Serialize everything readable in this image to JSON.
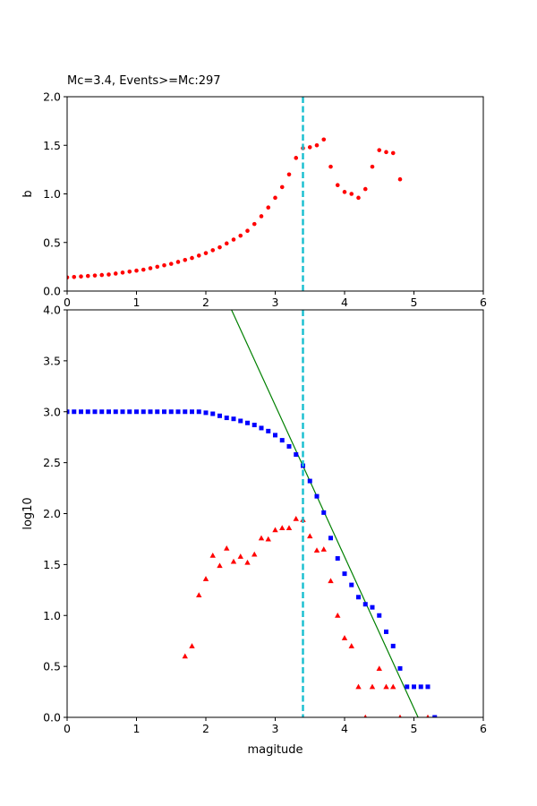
{
  "chart_data": [
    {
      "type": "scatter",
      "title": "Mc=3.4, Events>=Mc:297",
      "xlabel": "",
      "ylabel": "b",
      "xlim": [
        0,
        6
      ],
      "ylim": [
        0,
        2.0
      ],
      "xticks": [
        "0",
        "1",
        "2",
        "3",
        "4",
        "5",
        "6"
      ],
      "yticks": [
        "0.0",
        "0.5",
        "1.0",
        "1.5",
        "2.0"
      ],
      "grid": false,
      "mc_line": {
        "x": 3.4,
        "color": "#17becf",
        "style": "dashed"
      },
      "series": [
        {
          "color": "#ff0000",
          "marker": "circle",
          "x": [
            0.0,
            0.1,
            0.2,
            0.3,
            0.4,
            0.5,
            0.6,
            0.7,
            0.8,
            0.9,
            1.0,
            1.1,
            1.2,
            1.3,
            1.4,
            1.5,
            1.6,
            1.7,
            1.8,
            1.9,
            2.0,
            2.1,
            2.2,
            2.3,
            2.4,
            2.5,
            2.6,
            2.7,
            2.8,
            2.9,
            3.0,
            3.1,
            3.2,
            3.3,
            3.4,
            3.5,
            3.6,
            3.7,
            3.8,
            3.9,
            4.0,
            4.1,
            4.2,
            4.3,
            4.4,
            4.5,
            4.6,
            4.7,
            4.8
          ],
          "y": [
            0.14,
            0.145,
            0.15,
            0.155,
            0.16,
            0.165,
            0.17,
            0.18,
            0.19,
            0.2,
            0.21,
            0.22,
            0.235,
            0.25,
            0.265,
            0.28,
            0.3,
            0.32,
            0.34,
            0.365,
            0.39,
            0.42,
            0.45,
            0.49,
            0.53,
            0.57,
            0.62,
            0.69,
            0.77,
            0.86,
            0.96,
            1.07,
            1.2,
            1.37,
            1.47,
            1.48,
            1.5,
            1.56,
            1.28,
            1.09,
            1.02,
            1.0,
            0.96,
            1.05,
            1.28,
            1.45,
            1.43,
            1.42,
            1.15
          ]
        }
      ]
    },
    {
      "type": "scatter",
      "title": "",
      "xlabel": "magitude",
      "ylabel": "log10",
      "xlim": [
        0,
        6
      ],
      "ylim": [
        0,
        4.0
      ],
      "xticks": [
        "0",
        "1",
        "2",
        "3",
        "4",
        "5",
        "6"
      ],
      "yticks": [
        "0.0",
        "0.5",
        "1.0",
        "1.5",
        "2.0",
        "2.5",
        "3.0",
        "3.5",
        "4.0"
      ],
      "grid": false,
      "mc_line": {
        "x": 3.4,
        "color": "#17becf",
        "style": "dashed"
      },
      "fit_line": {
        "color": "#008000",
        "x": [
          2.37,
          5.06
        ],
        "y": [
          4.0,
          0.0
        ]
      },
      "series": [
        {
          "color": "#0000ff",
          "marker": "square",
          "x": [
            0.0,
            0.1,
            0.2,
            0.3,
            0.4,
            0.5,
            0.6,
            0.7,
            0.8,
            0.9,
            1.0,
            1.1,
            1.2,
            1.3,
            1.4,
            1.5,
            1.6,
            1.7,
            1.8,
            1.9,
            2.0,
            2.1,
            2.2,
            2.3,
            2.4,
            2.5,
            2.6,
            2.7,
            2.8,
            2.9,
            3.0,
            3.1,
            3.2,
            3.3,
            3.4,
            3.5,
            3.6,
            3.7,
            3.8,
            3.9,
            4.0,
            4.1,
            4.2,
            4.3,
            4.4,
            4.5,
            4.6,
            4.7,
            4.8,
            4.9,
            5.0,
            5.1,
            5.2,
            5.3
          ],
          "y": [
            3.0,
            3.0,
            3.0,
            3.0,
            3.0,
            3.0,
            3.0,
            3.0,
            3.0,
            3.0,
            3.0,
            3.0,
            3.0,
            3.0,
            3.0,
            3.0,
            3.0,
            3.0,
            3.0,
            3.0,
            2.99,
            2.98,
            2.96,
            2.94,
            2.93,
            2.91,
            2.89,
            2.87,
            2.84,
            2.81,
            2.77,
            2.72,
            2.66,
            2.58,
            2.47,
            2.32,
            2.17,
            2.01,
            1.76,
            1.56,
            1.41,
            1.3,
            1.18,
            1.11,
            1.08,
            1.0,
            0.84,
            0.7,
            0.48,
            0.3,
            0.3,
            0.3,
            0.3,
            0.0
          ]
        },
        {
          "color": "#ff0000",
          "marker": "triangle",
          "x": [
            1.7,
            1.8,
            1.9,
            2.0,
            2.1,
            2.2,
            2.3,
            2.4,
            2.5,
            2.6,
            2.7,
            2.8,
            2.9,
            3.0,
            3.1,
            3.2,
            3.3,
            3.4,
            3.5,
            3.6,
            3.7,
            3.8,
            3.9,
            4.0,
            4.1,
            4.2,
            4.3,
            4.4,
            4.5,
            4.6,
            4.7,
            4.8,
            5.2
          ],
          "y": [
            0.6,
            0.7,
            1.2,
            1.36,
            1.59,
            1.49,
            1.66,
            1.53,
            1.58,
            1.52,
            1.6,
            1.76,
            1.75,
            1.84,
            1.86,
            1.86,
            1.95,
            1.94,
            1.78,
            1.64,
            1.65,
            1.34,
            1.0,
            0.78,
            0.7,
            0.3,
            0.0,
            0.3,
            0.48,
            0.3,
            0.3,
            0.0,
            0.0
          ]
        }
      ]
    }
  ]
}
